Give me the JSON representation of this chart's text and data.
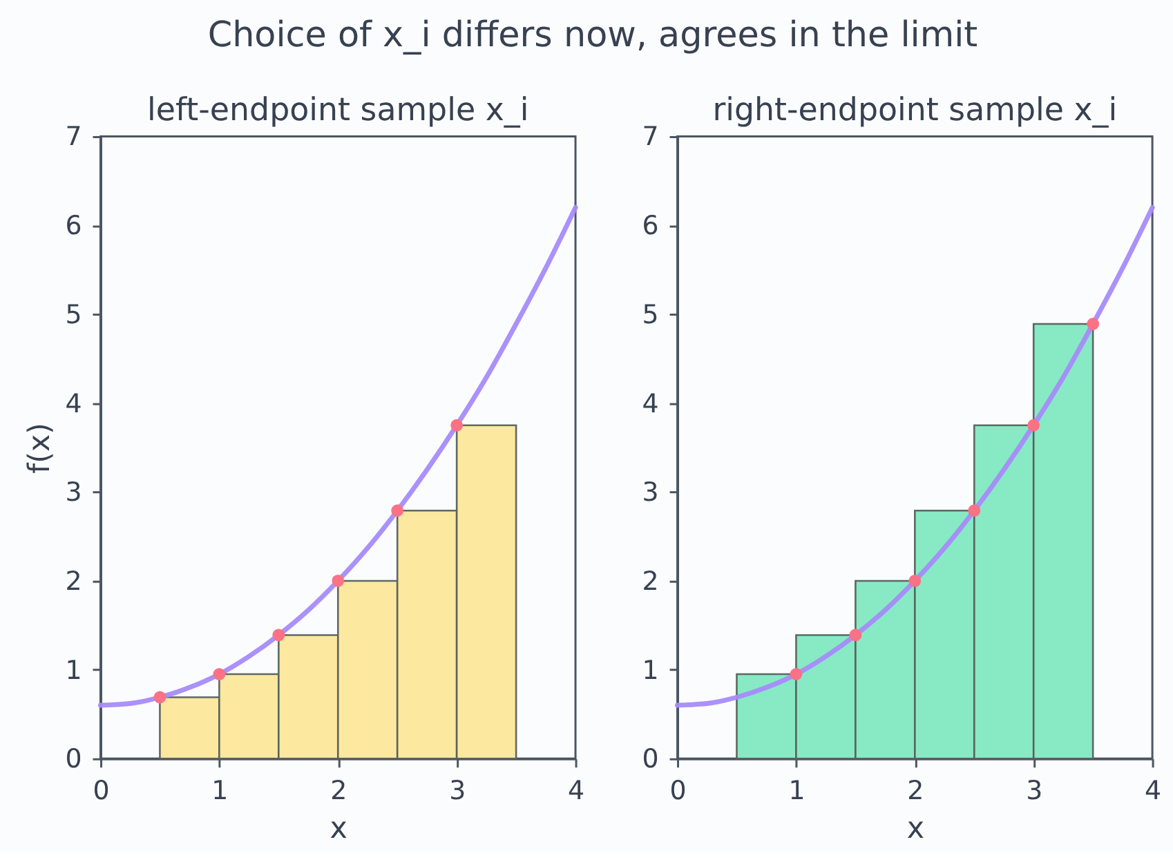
{
  "chart_data": [
    {
      "type": "histogram",
      "title": "left-endpoint sample x_i",
      "xlabel": "x",
      "ylabel": "f(x)",
      "annotations": [
        "Choice of x_i differs now, agrees in the limit"
      ],
      "bins": [
        0.5,
        1,
        1.5,
        2,
        2.5,
        3,
        3.5
      ],
      "series": [
        {
          "color": "#fde8a0",
          "values": [
            0.69,
            0.95,
            1.39,
            2.0,
            2.79,
            3.75
          ]
        },
        {
          "type": "line",
          "color": "#a78bfa",
          "line_style": "solid",
          "x": [
            0,
            0.25,
            0.5,
            0.75,
            1,
            1.25,
            1.5,
            1.75,
            2,
            2.25,
            2.5,
            2.75,
            3,
            3.25,
            3.5,
            3.75,
            4
          ],
          "values": [
            0.6,
            0.62,
            0.69,
            0.8,
            0.95,
            1.15,
            1.39,
            1.67,
            2.0,
            2.37,
            2.79,
            3.25,
            3.75,
            4.29,
            4.89,
            5.52,
            6.2
          ]
        },
        {
          "type": "scatter",
          "color": "#fb7185",
          "marker": "circle",
          "x": [
            0.5,
            1,
            1.5,
            2,
            2.5,
            3
          ],
          "values": [
            0.69,
            0.95,
            1.39,
            2.0,
            2.79,
            3.75
          ]
        }
      ],
      "xlim": [
        0,
        4
      ],
      "xticks": [
        0,
        1,
        2,
        3,
        4
      ],
      "ylim": [
        0,
        7
      ],
      "yticks": [
        0,
        1,
        2,
        3,
        4,
        5,
        6,
        7
      ],
      "grid": false
    },
    {
      "type": "histogram",
      "title": "right-endpoint sample x_i",
      "xlabel": "x",
      "bins": [
        0.5,
        1,
        1.5,
        2,
        2.5,
        3,
        3.5
      ],
      "series": [
        {
          "color": "#88e9c5",
          "values": [
            0.95,
            1.39,
            2.0,
            2.79,
            3.75,
            4.89
          ]
        },
        {
          "type": "line",
          "color": "#a78bfa",
          "line_style": "solid",
          "x": [
            0,
            0.25,
            0.5,
            0.75,
            1,
            1.25,
            1.5,
            1.75,
            2,
            2.25,
            2.5,
            2.75,
            3,
            3.25,
            3.5,
            3.75,
            4
          ],
          "values": [
            0.6,
            0.62,
            0.69,
            0.8,
            0.95,
            1.15,
            1.39,
            1.67,
            2.0,
            2.37,
            2.79,
            3.25,
            3.75,
            4.29,
            4.89,
            5.52,
            6.2
          ]
        },
        {
          "type": "scatter",
          "color": "#fb7185",
          "marker": "circle",
          "x": [
            1,
            1.5,
            2,
            2.5,
            3,
            3.5
          ],
          "values": [
            0.95,
            1.39,
            2.0,
            2.79,
            3.75,
            4.89
          ]
        }
      ],
      "xlim": [
        0,
        4
      ],
      "xticks": [
        0,
        1,
        2,
        3,
        4
      ],
      "ylim": [
        0,
        7
      ],
      "yticks": [
        0,
        1,
        2,
        3,
        4,
        5,
        6,
        7
      ],
      "grid": false
    }
  ]
}
